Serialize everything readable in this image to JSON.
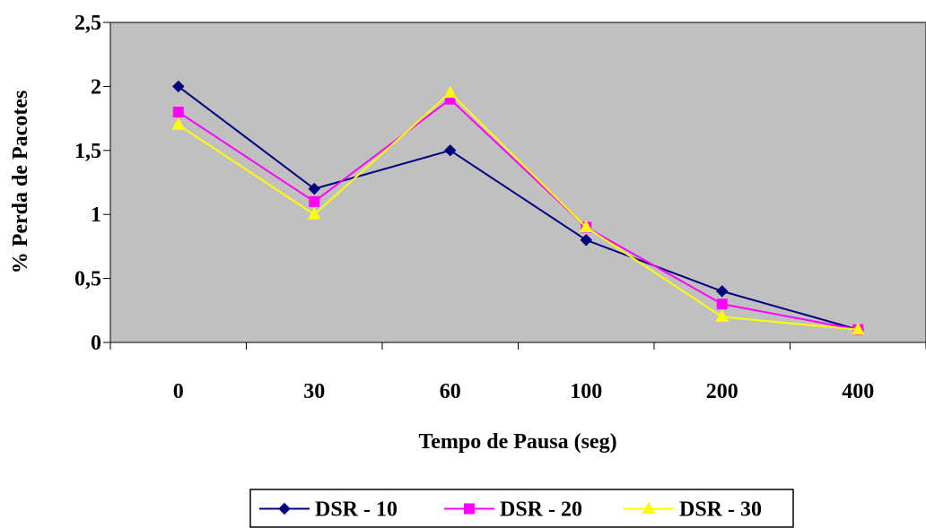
{
  "chart_data": {
    "type": "line",
    "title": "",
    "xlabel": "Tempo de Pausa (seg)",
    "ylabel": "% Perda de Pacotes",
    "categories": [
      "0",
      "30",
      "60",
      "100",
      "200",
      "400"
    ],
    "ylim": [
      0,
      2.5
    ],
    "yticks": [
      "0",
      "0,5",
      "1",
      "1,5",
      "2",
      "2,5"
    ],
    "grid": false,
    "background": "#c0c0c0",
    "legend_position": "bottom",
    "series": [
      {
        "name": "DSR - 10",
        "color": "#000080",
        "marker": "diamond",
        "values": [
          2.0,
          1.2,
          1.5,
          0.8,
          0.4,
          0.1
        ]
      },
      {
        "name": "DSR - 20",
        "color": "#ff00ff",
        "marker": "square",
        "values": [
          1.8,
          1.1,
          1.9,
          0.9,
          0.3,
          0.1
        ]
      },
      {
        "name": "DSR - 30",
        "color": "#ffff00",
        "marker": "triangle",
        "values": [
          1.7,
          1.0,
          1.95,
          0.9,
          0.2,
          0.1
        ]
      }
    ]
  }
}
